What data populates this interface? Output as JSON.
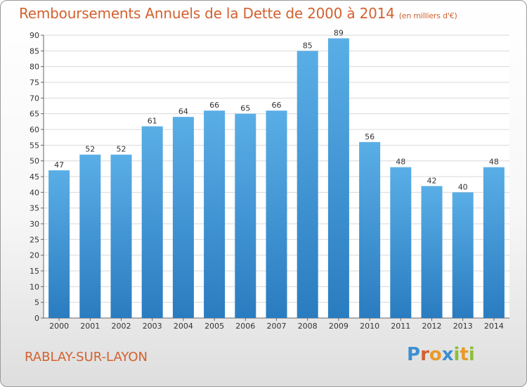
{
  "title": "Remboursements Annuels de la Dette de 2000 à 2014",
  "subtitle": "(en milliers d'€)",
  "commune": "RABLAY-SUR-LAYON",
  "logo": [
    "P",
    "r",
    "o",
    "x",
    "i",
    "t",
    "i"
  ],
  "colors": {
    "title": "#d2612f",
    "bar_top": "#5aaee6",
    "bar_bottom": "#2a7cc0",
    "logo": [
      "#3d8fd1",
      "#d2612f",
      "#e89a2a",
      "#3d8fd1",
      "#8bbf3a",
      "#e89a2a",
      "#8bbf3a"
    ]
  },
  "chart_data": {
    "type": "bar",
    "categories": [
      "2000",
      "2001",
      "2002",
      "2003",
      "2004",
      "2005",
      "2006",
      "2007",
      "2008",
      "2009",
      "2010",
      "2011",
      "2012",
      "2013",
      "2014"
    ],
    "values": [
      47,
      52,
      52,
      61,
      64,
      66,
      65,
      66,
      85,
      89,
      56,
      48,
      42,
      40,
      48
    ],
    "title": "Remboursements Annuels de la Dette de 2000 à 2014",
    "subtitle": "(en milliers d'€)",
    "ylim": [
      0,
      90
    ],
    "yticks": [
      0,
      5,
      10,
      15,
      20,
      25,
      30,
      35,
      40,
      45,
      50,
      55,
      60,
      65,
      70,
      75,
      80,
      85,
      90
    ],
    "grid": true,
    "data_labels": true
  }
}
